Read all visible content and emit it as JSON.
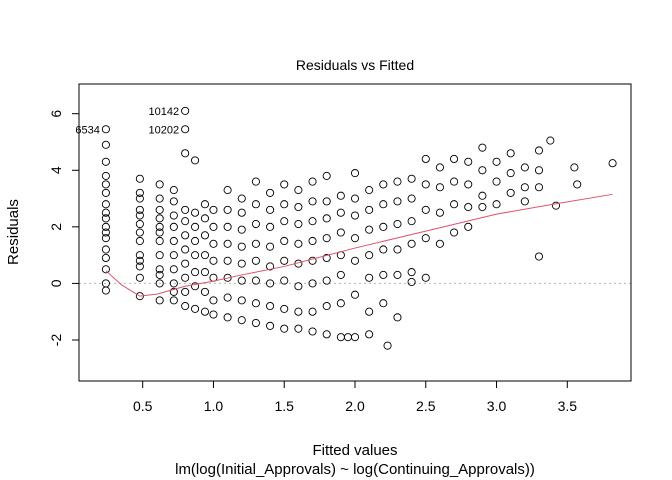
{
  "chart_data": {
    "type": "scatter",
    "title": "Residuals vs Fitted",
    "xlabel": "Fitted values",
    "subtitle": "lm(log(Initial_Approvals) ~ log(Continuing_Approvals))",
    "ylabel": "Residuals",
    "xlim": [
      0.05,
      3.95
    ],
    "ylim": [
      -3.45,
      7.05
    ],
    "x_ticks": [
      0.5,
      1.0,
      1.5,
      2.0,
      2.5,
      3.0,
      3.5
    ],
    "x_tick_labels": [
      "0.5",
      "1.0",
      "1.5",
      "2.0",
      "2.5",
      "3.0",
      "3.5"
    ],
    "y_ticks": [
      -2,
      0,
      2,
      4,
      6
    ],
    "y_tick_labels": [
      "-2",
      "0",
      "2",
      "4",
      "6"
    ],
    "reference_line_y": 0,
    "grid": false,
    "series_colors": {
      "points": "#000000",
      "smooth": "#df536b",
      "reference": "#b5b5b5"
    },
    "annotations": [
      {
        "label": "10142",
        "x": 0.8,
        "y": 6.1
      },
      {
        "label": "6534",
        "x": 0.24,
        "y": 5.45
      },
      {
        "label": "10202",
        "x": 0.8,
        "y": 5.45
      }
    ],
    "smooth_line": {
      "x": [
        0.24,
        0.35,
        0.48,
        0.6,
        0.8,
        1.0,
        1.2,
        1.5,
        2.0,
        2.5,
        3.0,
        3.4,
        3.82
      ],
      "y": [
        0.45,
        -0.05,
        -0.45,
        -0.38,
        -0.1,
        0.08,
        0.3,
        0.6,
        1.25,
        1.85,
        2.45,
        2.8,
        3.15
      ]
    },
    "points_sample": {
      "x": [
        0.24,
        0.24,
        0.24,
        0.24,
        0.24,
        0.24,
        0.24,
        0.24,
        0.24,
        0.24,
        0.24,
        0.24,
        0.24,
        0.24,
        0.24,
        0.24,
        0.48,
        0.48,
        0.48,
        0.48,
        0.48,
        0.48,
        0.48,
        0.48,
        0.48,
        0.48,
        0.48,
        0.48,
        0.48,
        0.62,
        0.62,
        0.62,
        0.62,
        0.62,
        0.62,
        0.62,
        0.62,
        0.62,
        0.62,
        0.62,
        0.62,
        0.72,
        0.72,
        0.72,
        0.72,
        0.72,
        0.72,
        0.72,
        0.72,
        0.72,
        0.72,
        0.8,
        0.8,
        0.8,
        0.8,
        0.8,
        0.8,
        0.8,
        0.8,
        0.8,
        0.87,
        0.87,
        0.87,
        0.87,
        0.87,
        0.87,
        0.87,
        0.87,
        0.94,
        0.94,
        0.94,
        0.94,
        0.94,
        0.94,
        0.94,
        1.0,
        1.0,
        1.0,
        1.0,
        1.0,
        1.0,
        1.0,
        1.1,
        1.1,
        1.1,
        1.1,
        1.1,
        1.1,
        1.1,
        1.1,
        1.2,
        1.2,
        1.2,
        1.2,
        1.2,
        1.2,
        1.2,
        1.2,
        1.3,
        1.3,
        1.3,
        1.3,
        1.3,
        1.3,
        1.3,
        1.3,
        1.4,
        1.4,
        1.4,
        1.4,
        1.4,
        1.4,
        1.4,
        1.4,
        1.5,
        1.5,
        1.5,
        1.5,
        1.5,
        1.5,
        1.5,
        1.5,
        1.6,
        1.6,
        1.6,
        1.6,
        1.6,
        1.6,
        1.6,
        1.6,
        1.7,
        1.7,
        1.7,
        1.7,
        1.7,
        1.7,
        1.7,
        1.7,
        1.8,
        1.8,
        1.8,
        1.8,
        1.8,
        1.8,
        1.8,
        1.8,
        1.9,
        1.9,
        1.9,
        1.9,
        1.9,
        1.9,
        1.9,
        2.0,
        2.0,
        2.0,
        2.0,
        2.0,
        2.0,
        2.0,
        2.1,
        2.1,
        2.1,
        2.1,
        2.1,
        2.1,
        2.2,
        2.2,
        2.2,
        2.2,
        2.2,
        2.2,
        2.3,
        2.3,
        2.3,
        2.3,
        2.3,
        2.4,
        2.4,
        2.4,
        2.4,
        2.4,
        2.5,
        2.5,
        2.5,
        2.5,
        2.5,
        2.6,
        2.6,
        2.6,
        2.6,
        2.7,
        2.7,
        2.7,
        2.7,
        2.8,
        2.8,
        2.8,
        2.8,
        2.9,
        2.9,
        2.9,
        2.9,
        3.0,
        3.0,
        3.0,
        3.1,
        3.1,
        3.1,
        3.2,
        3.2,
        3.2,
        3.3,
        3.3,
        3.3,
        3.38,
        3.42,
        3.55,
        3.57,
        3.82,
        2.4,
        2.3,
        2.23,
        2.1,
        1.95,
        3.3
      ],
      "y": [
        4.9,
        4.3,
        3.8,
        3.2,
        2.8,
        2.3,
        2.0,
        1.6,
        1.2,
        0.9,
        0.5,
        0.0,
        -0.25,
        2.5,
        3.5,
        1.8,
        3.7,
        3.2,
        2.6,
        2.1,
        1.5,
        1.0,
        0.6,
        0.2,
        -0.45,
        3.0,
        1.8,
        0.8,
        2.4,
        3.5,
        3.0,
        2.6,
        2.0,
        1.5,
        1.0,
        0.5,
        0.0,
        -0.6,
        1.8,
        0.3,
        2.3,
        3.3,
        2.9,
        2.4,
        2.0,
        1.5,
        1.0,
        0.5,
        0.0,
        -0.6,
        -0.3,
        4.6,
        2.6,
        2.2,
        1.7,
        1.2,
        0.7,
        0.2,
        -0.3,
        -0.8,
        4.35,
        2.5,
        2.0,
        1.5,
        1.0,
        0.4,
        -0.1,
        -0.9,
        2.8,
        2.3,
        1.7,
        1.0,
        0.4,
        -0.3,
        -1.0,
        2.6,
        2.0,
        1.4,
        0.8,
        0.2,
        -0.6,
        -1.1,
        3.3,
        2.6,
        2.0,
        1.4,
        0.8,
        0.2,
        -0.5,
        -1.2,
        3.0,
        2.5,
        1.9,
        1.3,
        0.7,
        0.1,
        -0.6,
        -1.3,
        3.6,
        2.8,
        2.1,
        1.4,
        0.8,
        0.1,
        -0.7,
        -1.4,
        3.2,
        2.6,
        2.0,
        1.3,
        0.6,
        0.0,
        -0.8,
        -1.5,
        3.5,
        2.8,
        2.2,
        1.5,
        0.8,
        0.1,
        -0.9,
        -1.6,
        3.3,
        2.7,
        2.1,
        1.4,
        0.7,
        -0.1,
        -1.0,
        -1.6,
        3.6,
        2.9,
        2.2,
        1.5,
        0.8,
        0.0,
        -1.0,
        -1.7,
        3.8,
        2.9,
        2.3,
        1.6,
        0.9,
        0.1,
        -0.8,
        -1.8,
        3.1,
        2.5,
        1.8,
        1.0,
        0.3,
        -0.7,
        -1.9,
        3.9,
        3.0,
        2.4,
        1.6,
        0.8,
        -0.4,
        -1.9,
        3.3,
        2.6,
        1.9,
        1.0,
        0.2,
        -1.0,
        3.5,
        2.8,
        2.0,
        1.2,
        0.3,
        -0.7,
        3.6,
        2.9,
        2.1,
        1.2,
        -1.2,
        3.7,
        3.0,
        2.2,
        1.4,
        0.4,
        4.4,
        3.5,
        2.6,
        1.6,
        0.2,
        4.1,
        3.4,
        2.5,
        1.4,
        4.4,
        3.6,
        2.8,
        1.8,
        4.3,
        3.5,
        2.7,
        2.0,
        4.8,
        4.0,
        3.1,
        2.7,
        4.3,
        3.6,
        2.8,
        4.6,
        3.9,
        3.2,
        4.1,
        3.4,
        2.9,
        4.7,
        4.0,
        3.4,
        5.05,
        2.75,
        4.1,
        3.5,
        4.25,
        0.05,
        0.3,
        -2.2,
        -1.8,
        -1.9,
        0.95
      ]
    }
  }
}
